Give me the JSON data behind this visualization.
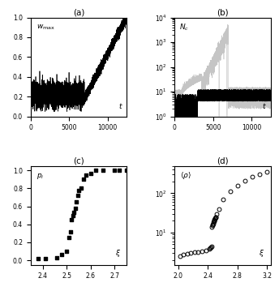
{
  "panel_a": {
    "label": "(a)",
    "xlim": [
      0,
      12500
    ],
    "ylim": [
      0,
      1
    ],
    "yticks": [
      0,
      0.2,
      0.4,
      0.6,
      0.8,
      1
    ],
    "xticks": [
      0,
      5000,
      10000
    ],
    "flat_end": 7000,
    "flat_mean": 0.22,
    "flat_std": 0.06,
    "rise_noise": 0.025,
    "seed": 1
  },
  "panel_b": {
    "label": "(b)",
    "xlim": [
      0,
      12500
    ],
    "ylim_log": [
      1,
      10000
    ],
    "yticks_log": [
      1,
      10,
      100,
      1000,
      10000
    ],
    "xticks": [
      0,
      5000,
      10000
    ],
    "seed": 3
  },
  "panel_c": {
    "label": "(c)",
    "xlim": [
      2.35,
      2.75
    ],
    "ylim": [
      -0.05,
      1.05
    ],
    "yticks": [
      0,
      0.2,
      0.4,
      0.6,
      0.8,
      1
    ],
    "xticks": [
      2.4,
      2.5,
      2.6,
      2.7
    ],
    "data_x": [
      2.38,
      2.41,
      2.46,
      2.48,
      2.5,
      2.51,
      2.515,
      2.52,
      2.525,
      2.53,
      2.535,
      2.54,
      2.545,
      2.55,
      2.56,
      2.57,
      2.58,
      2.6,
      2.62,
      2.65,
      2.7,
      2.72,
      2.75
    ],
    "data_y": [
      0.02,
      0.02,
      0.03,
      0.06,
      0.1,
      0.25,
      0.32,
      0.45,
      0.5,
      0.53,
      0.58,
      0.65,
      0.72,
      0.78,
      0.8,
      0.9,
      0.95,
      0.97,
      1.0,
      1.0,
      1.0,
      1.0,
      1.0
    ]
  },
  "panel_d": {
    "label": "(d)",
    "xlim": [
      1.95,
      3.25
    ],
    "ylim_log": [
      1.5,
      500
    ],
    "xticks": [
      2.0,
      2.4,
      2.8,
      3.2
    ],
    "data_x": [
      2.02,
      2.07,
      2.12,
      2.17,
      2.22,
      2.27,
      2.32,
      2.37,
      2.42,
      2.43,
      2.44,
      2.45,
      2.455,
      2.46,
      2.465,
      2.47,
      2.475,
      2.48,
      2.485,
      2.49,
      2.495,
      2.5,
      2.505,
      2.51,
      2.52,
      2.55,
      2.6,
      2.7,
      2.8,
      2.9,
      3.0,
      3.1,
      3.2
    ],
    "data_y": [
      2.5,
      2.8,
      2.9,
      3.0,
      3.1,
      3.2,
      3.3,
      3.5,
      3.8,
      4.0,
      4.2,
      4.5,
      14,
      15,
      16,
      17,
      18,
      19,
      20,
      21,
      22,
      23,
      24,
      25,
      30,
      40,
      70,
      110,
      160,
      210,
      260,
      310,
      360
    ]
  },
  "fig_color": "#ffffff",
  "line_color": "#000000",
  "gray_color": "#bbbbbb"
}
